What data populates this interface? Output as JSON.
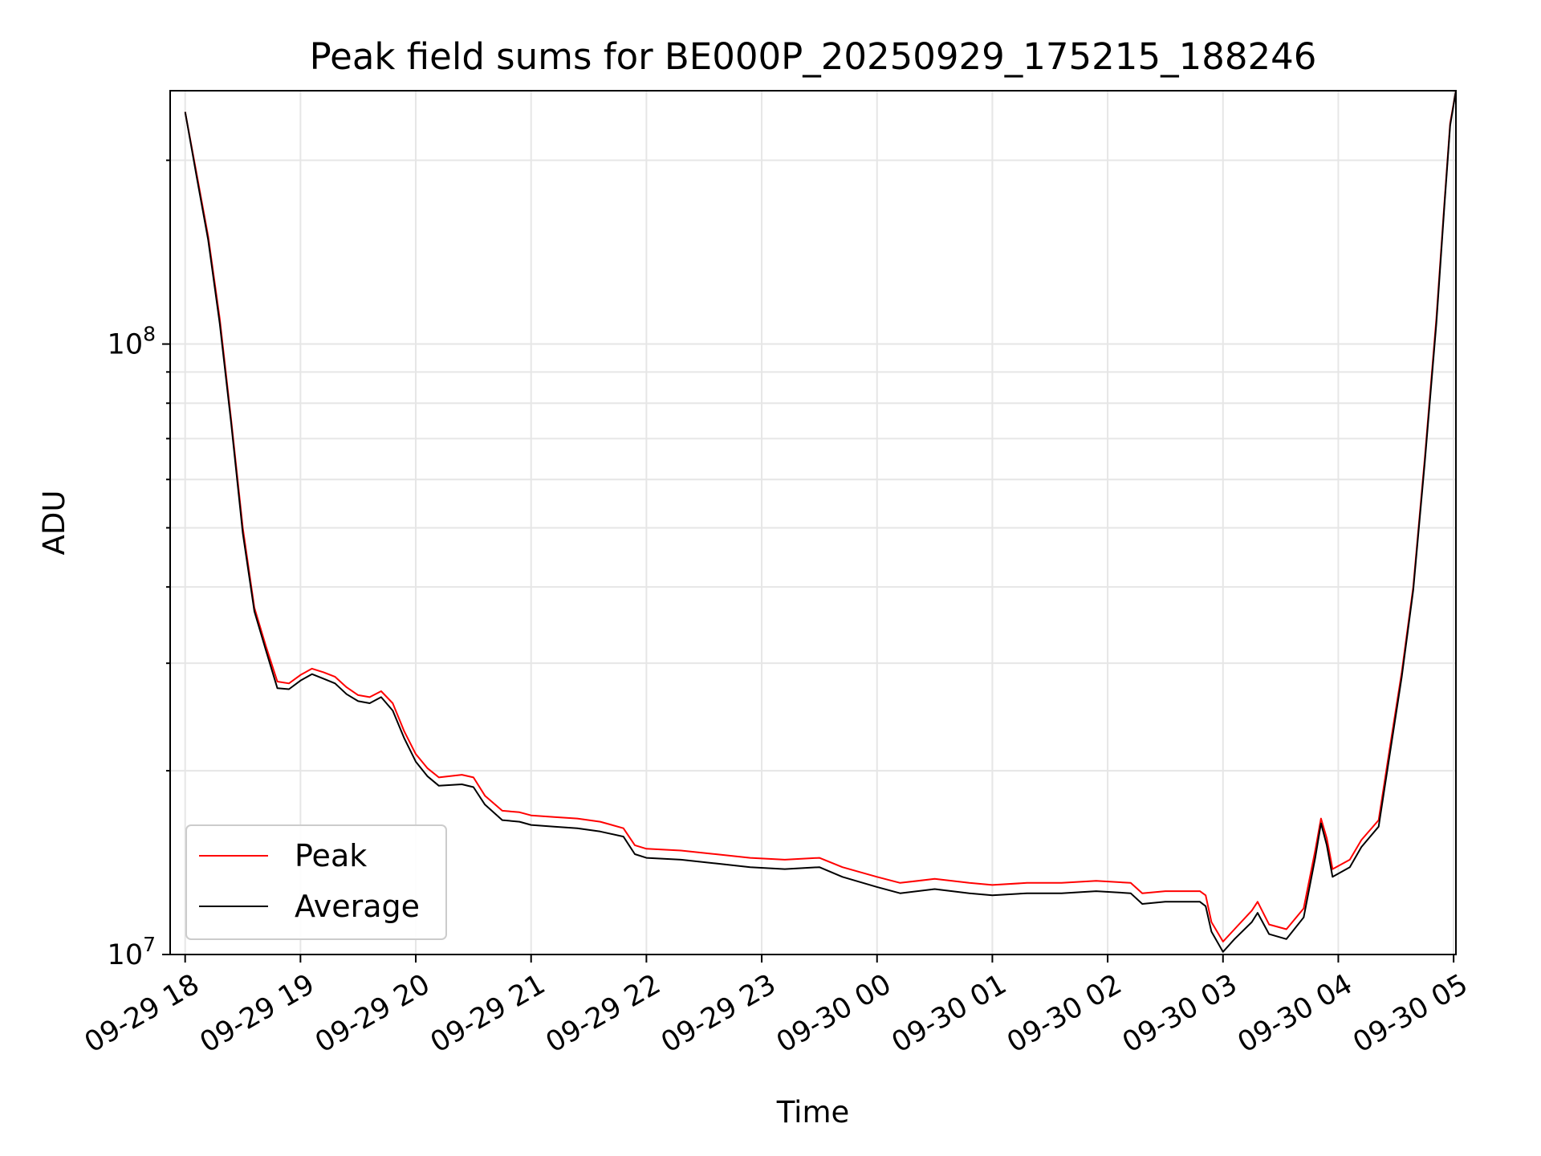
{
  "chart_data": {
    "type": "line",
    "title": "Peak field sums for BE000P_20250929_175215_188246",
    "xlabel": "Time",
    "ylabel": "ADU",
    "yscale": "log",
    "ylim": [
      10000000,
      260000000
    ],
    "xlim_hours": [
      17.87,
      29.02
    ],
    "x_ticks": [
      {
        "hour": 18,
        "label": "09-29 18"
      },
      {
        "hour": 19,
        "label": "09-29 19"
      },
      {
        "hour": 20,
        "label": "09-29 20"
      },
      {
        "hour": 21,
        "label": "09-29 21"
      },
      {
        "hour": 22,
        "label": "09-29 22"
      },
      {
        "hour": 23,
        "label": "09-29 23"
      },
      {
        "hour": 24,
        "label": "09-30 00"
      },
      {
        "hour": 25,
        "label": "09-30 01"
      },
      {
        "hour": 26,
        "label": "09-30 02"
      },
      {
        "hour": 27,
        "label": "09-30 03"
      },
      {
        "hour": 28,
        "label": "09-30 04"
      },
      {
        "hour": 29,
        "label": "09-30 05"
      }
    ],
    "y_ticks": [
      {
        "value": 10000000,
        "base": "10",
        "exp": "7"
      },
      {
        "value": 100000000,
        "base": "10",
        "exp": "8"
      }
    ],
    "grid": true,
    "legend_position": "lower-left",
    "series": [
      {
        "name": "Peak",
        "color": "#ff0000",
        "points": [
          [
            18.0,
            240000000
          ],
          [
            18.1,
            190000000
          ],
          [
            18.2,
            150000000
          ],
          [
            18.3,
            110000000
          ],
          [
            18.4,
            75000000
          ],
          [
            18.5,
            50000000
          ],
          [
            18.6,
            37000000
          ],
          [
            18.7,
            32000000
          ],
          [
            18.8,
            28000000
          ],
          [
            18.9,
            27800000
          ],
          [
            19.0,
            28700000
          ],
          [
            19.1,
            29400000
          ],
          [
            19.2,
            29000000
          ],
          [
            19.3,
            28500000
          ],
          [
            19.4,
            27400000
          ],
          [
            19.5,
            26600000
          ],
          [
            19.6,
            26400000
          ],
          [
            19.7,
            27000000
          ],
          [
            19.8,
            25800000
          ],
          [
            19.9,
            23200000
          ],
          [
            20.0,
            21300000
          ],
          [
            20.1,
            20200000
          ],
          [
            20.2,
            19500000
          ],
          [
            20.4,
            19700000
          ],
          [
            20.5,
            19500000
          ],
          [
            20.6,
            18200000
          ],
          [
            20.75,
            17200000
          ],
          [
            20.9,
            17100000
          ],
          [
            21.0,
            16900000
          ],
          [
            21.2,
            16800000
          ],
          [
            21.4,
            16700000
          ],
          [
            21.6,
            16500000
          ],
          [
            21.8,
            16100000
          ],
          [
            21.9,
            15100000
          ],
          [
            22.0,
            14900000
          ],
          [
            22.3,
            14800000
          ],
          [
            22.6,
            14600000
          ],
          [
            22.9,
            14400000
          ],
          [
            23.2,
            14300000
          ],
          [
            23.5,
            14400000
          ],
          [
            23.7,
            13900000
          ],
          [
            24.0,
            13400000
          ],
          [
            24.2,
            13100000
          ],
          [
            24.5,
            13300000
          ],
          [
            24.8,
            13100000
          ],
          [
            25.0,
            13000000
          ],
          [
            25.3,
            13100000
          ],
          [
            25.6,
            13100000
          ],
          [
            25.9,
            13200000
          ],
          [
            26.2,
            13100000
          ],
          [
            26.3,
            12600000
          ],
          [
            26.5,
            12700000
          ],
          [
            26.8,
            12700000
          ],
          [
            26.85,
            12500000
          ],
          [
            26.9,
            11300000
          ],
          [
            27.0,
            10500000
          ],
          [
            27.1,
            11000000
          ],
          [
            27.25,
            11800000
          ],
          [
            27.3,
            12200000
          ],
          [
            27.4,
            11200000
          ],
          [
            27.55,
            11000000
          ],
          [
            27.7,
            11900000
          ],
          [
            27.8,
            14800000
          ],
          [
            27.85,
            16700000
          ],
          [
            27.9,
            15500000
          ],
          [
            27.95,
            13800000
          ],
          [
            28.1,
            14300000
          ],
          [
            28.2,
            15400000
          ],
          [
            28.35,
            16600000
          ],
          [
            28.45,
            22000000
          ],
          [
            28.55,
            29000000
          ],
          [
            28.65,
            40000000
          ],
          [
            28.75,
            65000000
          ],
          [
            28.85,
            110000000
          ],
          [
            28.92,
            170000000
          ],
          [
            28.97,
            230000000
          ],
          [
            29.02,
            260000000
          ]
        ]
      },
      {
        "name": "Average",
        "color": "#000000",
        "points": [
          [
            18.0,
            240000000
          ],
          [
            18.1,
            188000000
          ],
          [
            18.2,
            148000000
          ],
          [
            18.3,
            108000000
          ],
          [
            18.4,
            74000000
          ],
          [
            18.5,
            49000000
          ],
          [
            18.6,
            36500000
          ],
          [
            18.7,
            31500000
          ],
          [
            18.8,
            27300000
          ],
          [
            18.9,
            27200000
          ],
          [
            19.0,
            28100000
          ],
          [
            19.1,
            28800000
          ],
          [
            19.2,
            28300000
          ],
          [
            19.3,
            27800000
          ],
          [
            19.4,
            26700000
          ],
          [
            19.5,
            26000000
          ],
          [
            19.6,
            25800000
          ],
          [
            19.7,
            26400000
          ],
          [
            19.8,
            25100000
          ],
          [
            19.9,
            22600000
          ],
          [
            20.0,
            20700000
          ],
          [
            20.1,
            19600000
          ],
          [
            20.2,
            18900000
          ],
          [
            20.4,
            19000000
          ],
          [
            20.5,
            18800000
          ],
          [
            20.6,
            17600000
          ],
          [
            20.75,
            16600000
          ],
          [
            20.9,
            16500000
          ],
          [
            21.0,
            16300000
          ],
          [
            21.2,
            16200000
          ],
          [
            21.4,
            16100000
          ],
          [
            21.6,
            15900000
          ],
          [
            21.8,
            15600000
          ],
          [
            21.9,
            14600000
          ],
          [
            22.0,
            14400000
          ],
          [
            22.3,
            14300000
          ],
          [
            22.6,
            14100000
          ],
          [
            22.9,
            13900000
          ],
          [
            23.2,
            13800000
          ],
          [
            23.5,
            13900000
          ],
          [
            23.7,
            13400000
          ],
          [
            24.0,
            12900000
          ],
          [
            24.2,
            12600000
          ],
          [
            24.5,
            12800000
          ],
          [
            24.8,
            12600000
          ],
          [
            25.0,
            12500000
          ],
          [
            25.3,
            12600000
          ],
          [
            25.6,
            12600000
          ],
          [
            25.9,
            12700000
          ],
          [
            26.2,
            12600000
          ],
          [
            26.3,
            12100000
          ],
          [
            26.5,
            12200000
          ],
          [
            26.8,
            12200000
          ],
          [
            26.85,
            12000000
          ],
          [
            26.9,
            10900000
          ],
          [
            27.0,
            10100000
          ],
          [
            27.1,
            10600000
          ],
          [
            27.25,
            11300000
          ],
          [
            27.3,
            11700000
          ],
          [
            27.4,
            10800000
          ],
          [
            27.55,
            10600000
          ],
          [
            27.7,
            11500000
          ],
          [
            27.8,
            14400000
          ],
          [
            27.85,
            16400000
          ],
          [
            27.9,
            15100000
          ],
          [
            27.95,
            13400000
          ],
          [
            28.1,
            13900000
          ],
          [
            28.2,
            15000000
          ],
          [
            28.35,
            16200000
          ],
          [
            28.45,
            21500000
          ],
          [
            28.55,
            28500000
          ],
          [
            28.65,
            39500000
          ],
          [
            28.75,
            64000000
          ],
          [
            28.85,
            108000000
          ],
          [
            28.92,
            168000000
          ],
          [
            28.97,
            228000000
          ],
          [
            29.02,
            260000000
          ]
        ]
      }
    ]
  }
}
